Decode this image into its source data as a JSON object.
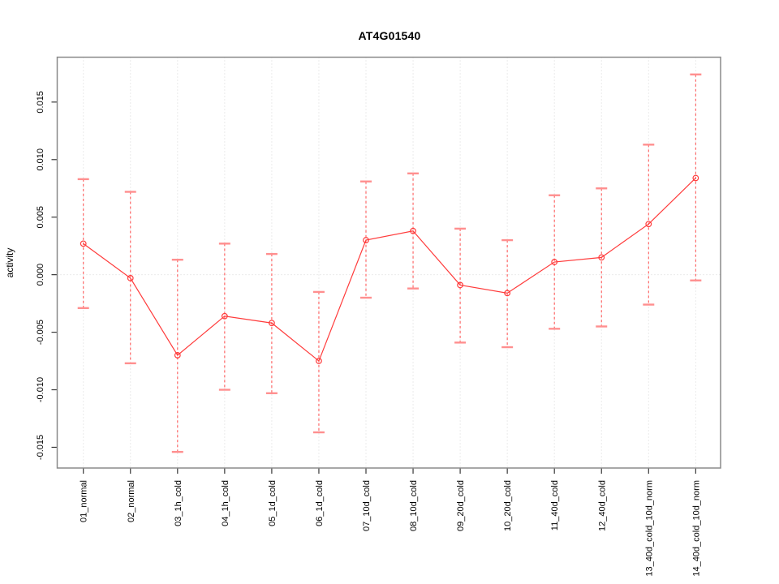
{
  "title": "AT4G01540",
  "chart_data": {
    "type": "line",
    "title": "AT4G01540",
    "xlabel": "",
    "ylabel": "activity",
    "legend_position": "none",
    "grid": "vertical dotted gridline at each category; horizontal dotted gridline at y=0 only",
    "marker": "open-circle",
    "error_bars": true,
    "categories": [
      "01_normal",
      "02_normal",
      "03_1h_cold",
      "04_1h_cold",
      "05_1d_cold",
      "06_1d_cold",
      "07_10d_cold",
      "08_10d_cold",
      "09_20d_cold",
      "10_20d_cold",
      "11_40d_cold",
      "12_40d_cold",
      "13_40d_cold_10d_norm",
      "14_40d_cold_10d_norm"
    ],
    "series": [
      {
        "name": "activity",
        "values": [
          0.0027,
          -0.0003,
          -0.007,
          -0.0036,
          -0.0042,
          -0.0075,
          0.003,
          0.0038,
          -0.0009,
          -0.0016,
          0.0011,
          0.0015,
          0.0044,
          0.0084
        ],
        "error_upper": [
          0.0083,
          0.0072,
          0.0013,
          0.0027,
          0.0018,
          -0.0015,
          0.0081,
          0.0088,
          0.004,
          0.003,
          0.0069,
          0.0075,
          0.0113,
          0.0174
        ],
        "error_lower": [
          -0.0029,
          -0.0077,
          -0.0154,
          -0.01,
          -0.0103,
          -0.0137,
          -0.002,
          -0.0012,
          -0.0059,
          -0.0063,
          -0.0047,
          -0.0045,
          -0.0026,
          -0.0005
        ]
      }
    ],
    "y_ticks": [
      0.015,
      0.01,
      0.005,
      0.0,
      -0.005,
      -0.01,
      -0.015
    ],
    "ylim": [
      -0.0168,
      0.0189
    ],
    "colors": {
      "series": "#ff3b3b",
      "error_bar_line": "#ff5c5c",
      "error_bar_cap": "#ff8f8f",
      "gridline": "#d8d8d8",
      "frame": "#8a8a8a",
      "tick": "#383838",
      "text": "#000000",
      "background": "#ffffff"
    }
  }
}
